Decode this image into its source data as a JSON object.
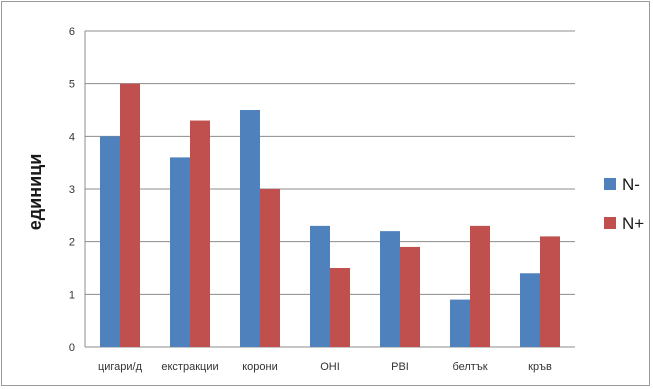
{
  "chart_data": {
    "type": "bar",
    "ylabel": "единици",
    "xlabel": "",
    "ylim": [
      0,
      6
    ],
    "yticks": [
      0,
      1,
      2,
      3,
      4,
      5,
      6
    ],
    "grid": true,
    "legend_position": "right",
    "categories": [
      "цигари/д",
      "екстракции",
      "корони",
      "OHI",
      "PBI",
      "белтък",
      "кръв"
    ],
    "series": [
      {
        "name": "N-",
        "color": "#4f81bd",
        "values": [
          4.0,
          3.6,
          4.5,
          2.3,
          2.2,
          0.9,
          1.4
        ]
      },
      {
        "name": "N+",
        "color": "#c0504d",
        "values": [
          5.0,
          4.3,
          3.0,
          1.5,
          1.9,
          2.3,
          2.1
        ]
      }
    ]
  }
}
